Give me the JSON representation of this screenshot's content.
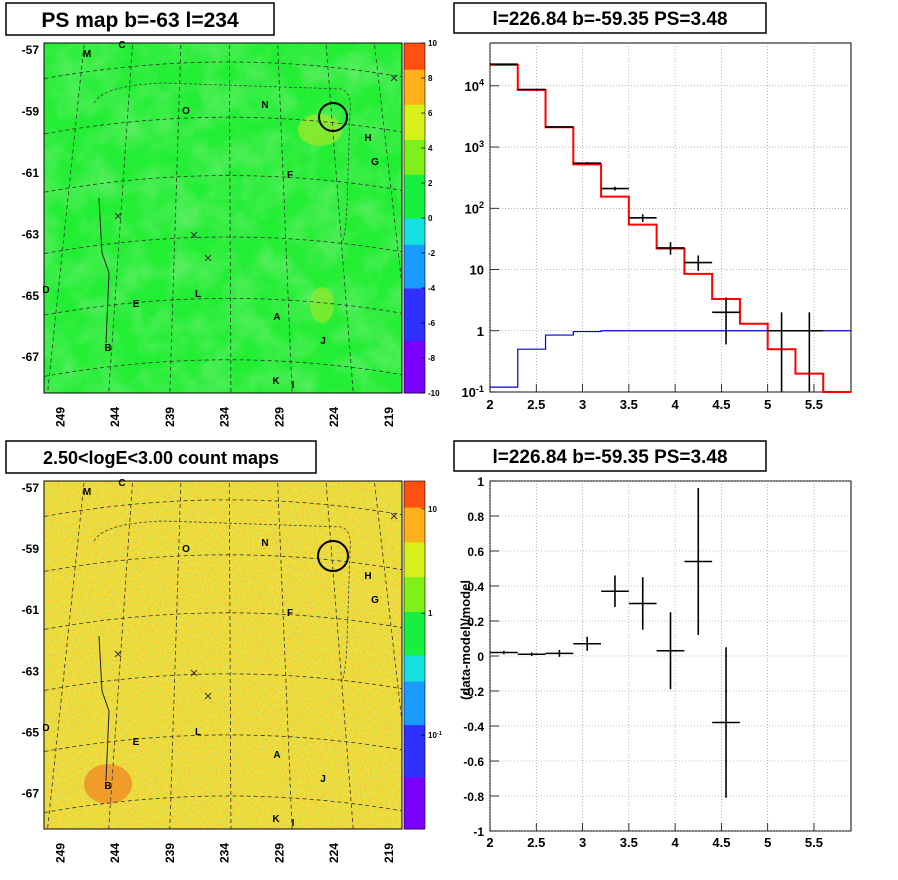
{
  "panels": {
    "tl_title": "PS map b=-63 l=234",
    "tr_title": "l=226.84 b=-59.35 PS=3.48",
    "bl_title": "2.50<logE<3.00 count maps",
    "br_title": "l=226.84 b=-59.35 PS=3.48"
  },
  "map_axes": {
    "lat_ticks": [
      "-57",
      "-59",
      "-61",
      "-63",
      "-65",
      "-67"
    ],
    "lon_ticks": [
      "249",
      "244",
      "239",
      "234",
      "229",
      "224",
      "219"
    ],
    "source_labels": [
      "M",
      "C",
      "O",
      "N",
      "H",
      "G",
      "F",
      "D",
      "E",
      "L",
      "A",
      "J",
      "B",
      "K",
      "I"
    ]
  },
  "colorbars": {
    "ps": {
      "ticks": [
        "10",
        "8",
        "6",
        "4",
        "2",
        "0",
        "-2",
        "-4",
        "-6",
        "-8",
        "-10"
      ],
      "range": [
        -10,
        10
      ]
    },
    "counts": {
      "ticks": [
        "10",
        "1",
        "10-1"
      ],
      "scale": "log"
    }
  },
  "colors": {
    "map_green": "#22ee33",
    "spectrum_data": "#000000",
    "spectrum_model": "#ff0000",
    "spectrum_exposure": "#0000cc"
  },
  "chart_data": [
    {
      "type": "heatmap",
      "title": "PS map b=-63 l=234",
      "xlabel": "",
      "ylabel": "",
      "xlim": [
        250,
        218
      ],
      "ylim": [
        -68,
        -56
      ],
      "zlim": [
        -10,
        10
      ],
      "colorbar": "rainbow",
      "sources": [
        "M",
        "C",
        "O",
        "N",
        "H",
        "G",
        "F",
        "D",
        "E",
        "L",
        "A",
        "J",
        "B",
        "K",
        "I"
      ],
      "grid": true
    },
    {
      "type": "line",
      "title": "l=226.84 b=-59.35 PS=3.48",
      "xlim": [
        2,
        5.9
      ],
      "ylim": [
        0.1,
        50000
      ],
      "yscale": "log",
      "x_ticks": [
        "2",
        "2.5",
        "3",
        "3.5",
        "4",
        "4.5",
        "5",
        "5.5"
      ],
      "y_ticks": [
        "10-1",
        "1",
        "10",
        "102",
        "103",
        "104"
      ],
      "grid": true,
      "series": [
        {
          "edges": [
            2,
            2.3,
            2.6,
            2.9,
            3.2,
            3.5,
            3.8,
            4.1,
            4.4,
            4.7,
            5.0,
            5.3,
            5.6,
            5.9
          ],
          "values": [
            22000,
            8600,
            2100,
            520,
            155,
            54,
            22,
            8.5,
            3.3,
            1.3,
            0.5,
            0.2,
            0.1
          ]
        },
        {
          "edges": [
            2,
            2.3,
            2.6,
            2.9,
            3.2,
            3.5,
            3.8,
            4.1,
            4.4,
            4.7,
            5.0,
            5.3,
            5.6,
            5.9
          ],
          "values": [
            0.12,
            0.5,
            0.85,
            0.97,
            1.0,
            1.0,
            1.0,
            1.0,
            1.0,
            1.0,
            1.0,
            1.0,
            1.0
          ]
        },
        {
          "points": [
            {
              "x": 2.15,
              "y": 22500,
              "lo": 22000,
              "hi": 23000
            },
            {
              "x": 2.45,
              "y": 8700,
              "lo": 8550,
              "hi": 8850
            },
            {
              "x": 2.75,
              "y": 2130,
              "lo": 2090,
              "hi": 2170
            },
            {
              "x": 3.05,
              "y": 545,
              "lo": 520,
              "hi": 570
            },
            {
              "x": 3.35,
              "y": 210,
              "lo": 195,
              "hi": 225
            },
            {
              "x": 3.65,
              "y": 70,
              "lo": 60,
              "hi": 80
            },
            {
              "x": 3.95,
              "y": 22.5,
              "lo": 17.5,
              "hi": 28
            },
            {
              "x": 4.25,
              "y": 13,
              "lo": 9.5,
              "hi": 17
            },
            {
              "x": 4.55,
              "y": 2,
              "lo": 0.6,
              "hi": 3.5
            },
            {
              "x": 5.15,
              "y": 1,
              "lo": 0.1,
              "hi": 2
            },
            {
              "x": 5.45,
              "y": 1,
              "lo": 0.1,
              "hi": 2
            }
          ]
        }
      ]
    },
    {
      "type": "heatmap",
      "title": "2.50<logE<3.00 count maps",
      "xlim": [
        250,
        218
      ],
      "ylim": [
        -68,
        -56
      ],
      "zscale": "log",
      "colorbar": "rainbow",
      "grid": true
    },
    {
      "type": "scatter",
      "title": "l=226.84 b=-59.35 PS=3.48",
      "ylabel": "(data-model)/model",
      "xlim": [
        2,
        5.9
      ],
      "ylim": [
        -1,
        1
      ],
      "x_ticks": [
        "2",
        "2.5",
        "3",
        "3.5",
        "4",
        "4.5",
        "5",
        "5.5"
      ],
      "y_ticks": [
        "1",
        "0.8",
        "0.6",
        "0.4",
        "0.2",
        "0",
        "-0.2",
        "-0.4",
        "-0.6",
        "-0.8",
        "-1"
      ],
      "grid": true,
      "points": [
        {
          "x": 2.15,
          "y": 0.02,
          "yerr": 0.01
        },
        {
          "x": 2.45,
          "y": 0.01,
          "yerr": 0.01
        },
        {
          "x": 2.75,
          "y": 0.015,
          "yerr": 0.02
        },
        {
          "x": 3.05,
          "y": 0.07,
          "yerr": 0.04
        },
        {
          "x": 3.35,
          "y": 0.37,
          "yerr": 0.09
        },
        {
          "x": 3.65,
          "y": 0.3,
          "yerr": 0.15
        },
        {
          "x": 3.95,
          "y": 0.03,
          "yerr": 0.22
        },
        {
          "x": 4.25,
          "y": 0.54,
          "yerr": 0.42
        },
        {
          "x": 4.55,
          "y": -0.38,
          "yerr": 0.43
        }
      ]
    }
  ]
}
